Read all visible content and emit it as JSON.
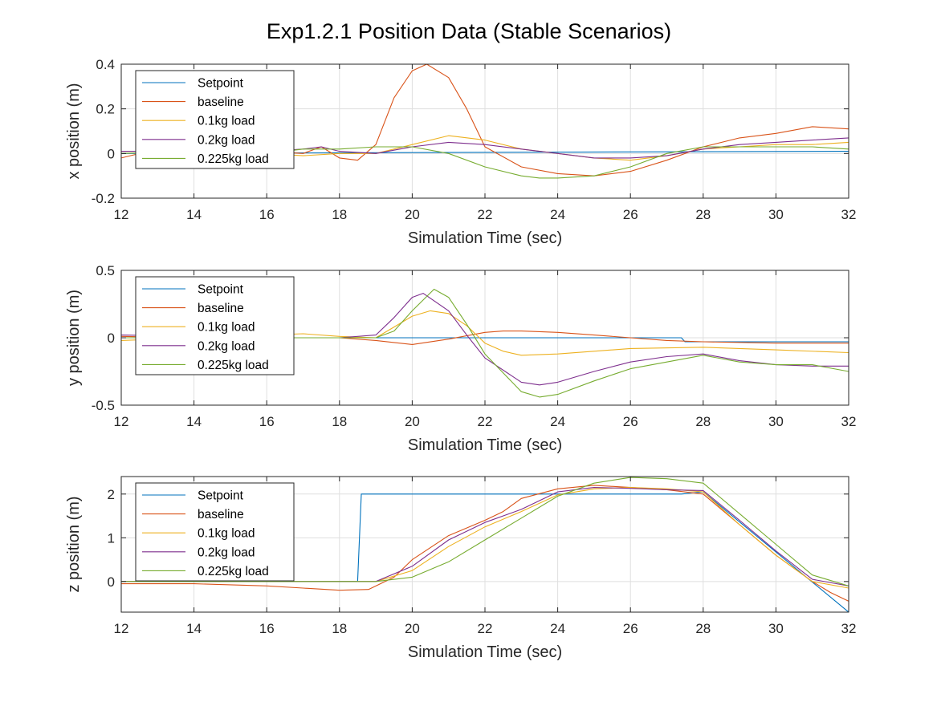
{
  "title": "Exp1.2.1 Position Data (Stable Scenarios)",
  "colors": {
    "Setpoint": "#0072BD",
    "baseline": "#D95319",
    "0.1kg load": "#EDB120",
    "0.2kg load": "#7E2F8E",
    "0.225kg load": "#77AC30"
  },
  "chart_data": [
    {
      "type": "line",
      "xlabel": "Simulation Time (sec)",
      "ylabel": "x position (m)",
      "xlim": [
        12,
        32
      ],
      "ylim": [
        -0.2,
        0.4
      ],
      "xticks": [
        12,
        14,
        16,
        18,
        20,
        22,
        24,
        26,
        28,
        30,
        32
      ],
      "yticks": [
        -0.2,
        0,
        0.2,
        0.4
      ],
      "grid": true,
      "legend": "top-left",
      "series": [
        {
          "name": "Setpoint",
          "x": [
            12,
            32
          ],
          "y": [
            0,
            0.01
          ]
        },
        {
          "name": "baseline",
          "x": [
            12,
            13,
            14,
            15,
            16,
            17,
            17.5,
            18,
            18.5,
            19,
            19.5,
            20,
            20.4,
            21,
            21.5,
            22,
            23,
            24,
            25,
            26,
            27,
            28,
            29,
            30,
            31,
            32
          ],
          "y": [
            -0.02,
            0.02,
            0.01,
            0.0,
            0.01,
            0.0,
            0.03,
            -0.02,
            -0.03,
            0.04,
            0.25,
            0.37,
            0.4,
            0.34,
            0.2,
            0.03,
            -0.06,
            -0.09,
            -0.1,
            -0.08,
            -0.03,
            0.03,
            0.07,
            0.09,
            0.12,
            0.11
          ]
        },
        {
          "name": "0.1kg load",
          "x": [
            12,
            14,
            16,
            17,
            18,
            19,
            20,
            21,
            22,
            23,
            24,
            25,
            26,
            27,
            28,
            29,
            30,
            31,
            32
          ],
          "y": [
            0.01,
            0.01,
            0.0,
            -0.01,
            0.0,
            0.0,
            0.04,
            0.08,
            0.06,
            0.02,
            0.0,
            -0.02,
            -0.03,
            -0.01,
            0.02,
            0.03,
            0.04,
            0.04,
            0.05
          ]
        },
        {
          "name": "0.2kg load",
          "x": [
            12,
            14,
            16,
            17,
            17.5,
            18,
            19,
            20,
            21,
            22,
            23,
            24,
            25,
            26,
            27,
            28,
            29,
            30,
            31,
            32
          ],
          "y": [
            0.01,
            0.01,
            0.01,
            0.02,
            0.03,
            0.01,
            0.0,
            0.03,
            0.05,
            0.04,
            0.02,
            0.0,
            -0.02,
            -0.02,
            -0.01,
            0.02,
            0.04,
            0.05,
            0.06,
            0.07
          ]
        },
        {
          "name": "0.225kg load",
          "x": [
            12,
            14,
            16,
            17,
            18,
            19,
            20,
            21,
            22,
            23,
            23.5,
            24,
            25,
            26,
            27,
            28,
            29,
            30,
            31,
            32
          ],
          "y": [
            0.0,
            0.01,
            0.0,
            0.02,
            0.02,
            0.03,
            0.03,
            0.0,
            -0.06,
            -0.1,
            -0.11,
            -0.11,
            -0.1,
            -0.06,
            0.0,
            0.03,
            0.03,
            0.03,
            0.03,
            0.02
          ]
        }
      ]
    },
    {
      "type": "line",
      "xlabel": "Simulation Time (sec)",
      "ylabel": "y position (m)",
      "xlim": [
        12,
        32
      ],
      "ylim": [
        -0.5,
        0.5
      ],
      "xticks": [
        12,
        14,
        16,
        18,
        20,
        22,
        24,
        26,
        28,
        30,
        32
      ],
      "yticks": [
        -0.5,
        0,
        0.5
      ],
      "grid": true,
      "legend": "top-left",
      "series": [
        {
          "name": "Setpoint",
          "x": [
            12,
            27.4,
            27.5,
            32
          ],
          "y": [
            0,
            0,
            -0.03,
            -0.03
          ]
        },
        {
          "name": "baseline",
          "x": [
            12,
            14,
            16,
            18,
            19,
            20,
            21,
            22,
            22.5,
            23,
            24,
            25,
            26,
            27,
            28,
            30,
            32
          ],
          "y": [
            0.01,
            0.0,
            0.0,
            0.0,
            -0.02,
            -0.05,
            -0.01,
            0.04,
            0.05,
            0.05,
            0.04,
            0.02,
            0.0,
            -0.02,
            -0.03,
            -0.04,
            -0.04
          ]
        },
        {
          "name": "0.1kg load",
          "x": [
            12,
            14,
            16,
            17,
            18,
            19,
            19.5,
            20,
            20.5,
            21,
            21.5,
            22,
            22.5,
            23,
            24,
            26,
            28,
            30,
            32
          ],
          "y": [
            -0.02,
            0.0,
            0.02,
            0.03,
            0.01,
            0.0,
            0.08,
            0.16,
            0.2,
            0.18,
            0.09,
            -0.04,
            -0.1,
            -0.13,
            -0.12,
            -0.08,
            -0.07,
            -0.09,
            -0.11
          ]
        },
        {
          "name": "0.2kg load",
          "x": [
            12,
            14,
            16,
            18,
            19,
            19.5,
            20,
            20.3,
            21,
            21.5,
            22,
            23,
            23.5,
            24,
            25,
            26,
            27,
            28,
            29,
            30,
            31,
            32
          ],
          "y": [
            0.02,
            0.01,
            0.0,
            0.0,
            0.02,
            0.15,
            0.3,
            0.33,
            0.2,
            0.02,
            -0.15,
            -0.33,
            -0.35,
            -0.33,
            -0.25,
            -0.18,
            -0.14,
            -0.12,
            -0.17,
            -0.2,
            -0.21,
            -0.21
          ]
        },
        {
          "name": "0.225kg load",
          "x": [
            12,
            14,
            16,
            18,
            19,
            19.5,
            20,
            20.6,
            21,
            21.5,
            22,
            23,
            23.5,
            24,
            25,
            26,
            27,
            28,
            29,
            30,
            31,
            32
          ],
          "y": [
            0.0,
            0.0,
            0.0,
            0.0,
            0.0,
            0.05,
            0.2,
            0.36,
            0.3,
            0.1,
            -0.12,
            -0.4,
            -0.44,
            -0.42,
            -0.32,
            -0.23,
            -0.18,
            -0.13,
            -0.18,
            -0.2,
            -0.2,
            -0.25
          ]
        }
      ]
    },
    {
      "type": "line",
      "xlabel": "Simulation Time (sec)",
      "ylabel": "z position (m)",
      "xlim": [
        12,
        32
      ],
      "ylim": [
        -0.7,
        2.4
      ],
      "xticks": [
        12,
        14,
        16,
        18,
        20,
        22,
        24,
        26,
        28,
        30,
        32
      ],
      "yticks": [
        0,
        1,
        2
      ],
      "grid": true,
      "legend": "top-left",
      "series": [
        {
          "name": "Setpoint",
          "x": [
            12,
            18.5,
            18.6,
            27.4,
            28,
            32
          ],
          "y": [
            0,
            0,
            2.0,
            2.0,
            2.05,
            -0.7
          ]
        },
        {
          "name": "baseline",
          "x": [
            12,
            14,
            16,
            17,
            18,
            18.8,
            19.5,
            20,
            21,
            22,
            22.5,
            23,
            24,
            25,
            26,
            27,
            28,
            29,
            30,
            31,
            31.5,
            32
          ],
          "y": [
            -0.05,
            -0.05,
            -0.1,
            -0.15,
            -0.2,
            -0.18,
            0.1,
            0.5,
            1.05,
            1.4,
            1.6,
            1.9,
            2.12,
            2.2,
            2.15,
            2.1,
            2.0,
            1.3,
            0.6,
            0.0,
            -0.25,
            -0.45
          ]
        },
        {
          "name": "0.1kg load",
          "x": [
            12,
            14,
            16,
            18,
            19,
            20,
            21,
            22,
            23,
            24,
            25,
            26,
            27,
            28,
            29,
            30,
            31,
            32
          ],
          "y": [
            0,
            0,
            0,
            0,
            0.0,
            0.25,
            0.8,
            1.25,
            1.6,
            1.98,
            2.12,
            2.15,
            2.12,
            2.05,
            1.3,
            0.6,
            0.0,
            -0.15
          ]
        },
        {
          "name": "0.2kg load",
          "x": [
            12,
            14,
            16,
            18,
            19,
            20,
            21,
            22,
            23,
            24,
            25,
            26,
            27,
            28,
            29,
            30,
            31,
            32
          ],
          "y": [
            0,
            0,
            0,
            0,
            0.0,
            0.35,
            0.95,
            1.35,
            1.65,
            2.05,
            2.15,
            2.13,
            2.1,
            2.08,
            1.4,
            0.7,
            0.05,
            -0.1
          ]
        },
        {
          "name": "0.225kg load",
          "x": [
            12,
            14,
            16,
            18,
            19,
            20,
            21,
            22,
            23,
            24,
            25,
            26,
            27,
            28,
            29,
            30,
            31,
            32
          ],
          "y": [
            0,
            0,
            0,
            0,
            0.0,
            0.1,
            0.45,
            0.95,
            1.45,
            1.95,
            2.25,
            2.38,
            2.35,
            2.25,
            1.55,
            0.85,
            0.15,
            -0.1
          ]
        }
      ]
    }
  ]
}
